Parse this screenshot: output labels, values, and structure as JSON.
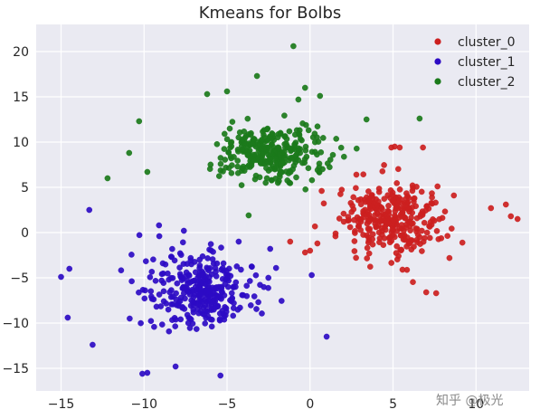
{
  "chart_data": {
    "type": "scatter",
    "title": "Kmeans for Bolbs",
    "xlabel": "",
    "ylabel": "",
    "xlim": [
      -16.5,
      13.2
    ],
    "ylim": [
      -17.5,
      23.0
    ],
    "x_ticks": [
      -15,
      -10,
      -5,
      0,
      5,
      10
    ],
    "y_ticks": [
      -15,
      -10,
      -5,
      0,
      5,
      10,
      15,
      20
    ],
    "grid": true,
    "legend_position": "top-right",
    "series": [
      {
        "name": "cluster_0",
        "color": "#cc1f1f",
        "approx_count": 330,
        "center": [
          4.8,
          1.5
        ],
        "spread": [
          2.4,
          3.1
        ],
        "points": [
          [
            12.5,
            1.5
          ],
          [
            11.8,
            3.1
          ],
          [
            12.1,
            1.8
          ],
          [
            10.9,
            2.7
          ],
          [
            7.0,
            -6.6
          ],
          [
            7.6,
            -6.7
          ],
          [
            6.8,
            9.4
          ],
          [
            5.4,
            9.4
          ],
          [
            4.9,
            9.4
          ],
          [
            5.1,
            9.5
          ],
          [
            0.7,
            4.6
          ],
          [
            0.0,
            -2.0
          ],
          [
            -0.3,
            -2.2
          ],
          [
            -1.2,
            -1.0
          ]
        ]
      },
      {
        "name": "cluster_1",
        "color": "#2d0bc4",
        "approx_count": 330,
        "center": [
          -6.5,
          -6.5
        ],
        "spread": [
          2.6,
          3.1
        ],
        "points": [
          [
            -13.3,
            2.5
          ],
          [
            -15.0,
            -4.9
          ],
          [
            -14.5,
            -4.0
          ],
          [
            -9.8,
            -15.5
          ],
          [
            -10.1,
            -15.6
          ],
          [
            -5.4,
            -15.8
          ],
          [
            -8.1,
            -14.8
          ],
          [
            -7.6,
            0.2
          ],
          [
            -9.1,
            0.8
          ],
          [
            1.0,
            -11.5
          ],
          [
            0.1,
            -4.7
          ],
          [
            -4.3,
            -1.0
          ],
          [
            -2.4,
            -1.8
          ],
          [
            -14.6,
            -9.4
          ],
          [
            -13.1,
            -12.4
          ]
        ]
      },
      {
        "name": "cluster_2",
        "color": "#1b7a1b",
        "approx_count": 330,
        "center": [
          -2.2,
          8.8
        ],
        "spread": [
          2.7,
          2.6
        ],
        "points": [
          [
            -1.0,
            20.6
          ],
          [
            -3.2,
            17.3
          ],
          [
            -5.0,
            15.6
          ],
          [
            -0.7,
            14.7
          ],
          [
            6.6,
            12.6
          ],
          [
            3.4,
            12.5
          ],
          [
            -10.3,
            12.3
          ],
          [
            -12.2,
            6.0
          ],
          [
            -10.9,
            8.8
          ],
          [
            -9.8,
            6.7
          ],
          [
            -3.7,
            1.9
          ],
          [
            0.6,
            15.1
          ],
          [
            -6.2,
            15.3
          ],
          [
            -0.3,
            16.0
          ]
        ]
      }
    ]
  },
  "watermark": "知乎 @极光"
}
